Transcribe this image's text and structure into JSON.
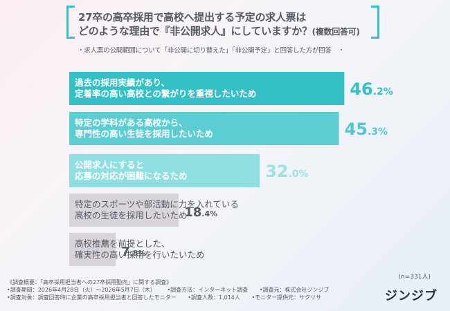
{
  "title": {
    "line1": "27卒の高卒採用で高校へ提出する予定の求人票は",
    "line2": "どのような理由で『非公開求人』にしていますか？",
    "line2_note": "(複数回答可)"
  },
  "subtitle": "・求人票の公開範囲について「非公開に切り替えた」「非公開予定」と回答した方が回答　・",
  "chart_data": {
    "type": "bar",
    "orientation": "horizontal",
    "unit": "%",
    "categories": [
      [
        "過去の採用実績があり、",
        "定着率の高い高校との繋がりを重視したいため"
      ],
      [
        "特定の学科がある高校から、",
        "専門性の高い生徒を採用したいため"
      ],
      [
        "公開求人にすると",
        "応募の対応が困難になるため"
      ],
      [
        "特定のスポーツや部活動に力を入れている",
        "高校の生徒を採用したいため"
      ],
      [
        "高校推薦を前提とした、",
        "確実性の高い採用を行いたいため"
      ]
    ],
    "values": [
      46.2,
      45.3,
      32.0,
      18.4,
      7.8
    ],
    "value_labels": [
      {
        "int": "46",
        "dec": ".2",
        "pct": "%"
      },
      {
        "int": "45",
        "dec": ".3",
        "pct": "%"
      },
      {
        "int": "32",
        "dec": ".0",
        "pct": "%"
      },
      {
        "int": "18",
        "dec": ".4",
        "pct": "%"
      },
      {
        "int": "7",
        "dec": ".8",
        "pct": "%"
      }
    ],
    "colors": [
      "#35bfc6",
      "#5ccdd3",
      "#8edee2",
      "#d9d4dc",
      "#d9d4dc"
    ],
    "value_colors": [
      "#35bfc6",
      "#4fc8ce",
      "#9fe0e3",
      "#555a62",
      "#555a62"
    ],
    "xlim": [
      0,
      50
    ]
  },
  "n_note": "(n=331人)",
  "footer": {
    "line1": "《調査概要：「高卒採用担当者への27卒採用動向」に関する調査》",
    "line2": [
      "•調査期間：2026年4月28日（火）～2026年5月7日（木）",
      "•調査方法：インターネット調査",
      "•調査元：株式会社ジンジブ"
    ],
    "line3": [
      "•調査対象：調査回答時に企業の高卒採用担当者と回答したモニター",
      "•調査人数：1,014人",
      "•モニター提供元：サクリサ"
    ]
  },
  "logo": "ジンジブ"
}
